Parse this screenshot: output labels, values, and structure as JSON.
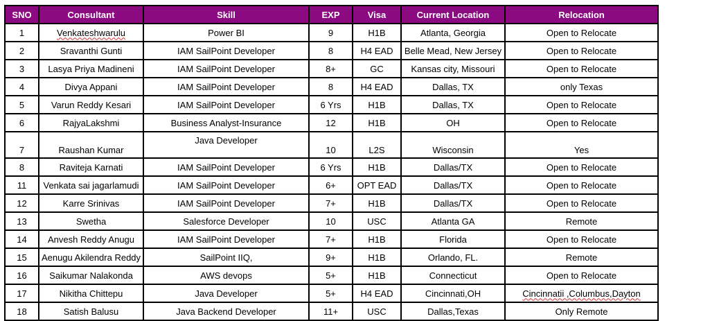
{
  "table": {
    "header_color": "#8b0a82",
    "columns": [
      "SNO",
      "Consultant",
      "Skill",
      "EXP",
      "Visa",
      "Current Location",
      "Relocation"
    ],
    "rows": [
      {
        "sno": "1",
        "consultant": "Venkateshwarulu",
        "skill": "Power BI",
        "exp": "9",
        "visa": "H1B",
        "location": "Atlanta, Georgia",
        "relocation": "Open to Relocate"
      },
      {
        "sno": "2",
        "consultant": "Sravanthi Gunti",
        "skill": "IAM SailPoint Developer",
        "exp": "8",
        "visa": "H4 EAD",
        "location": "Belle Mead, New Jersey",
        "relocation": "Open to Relocate"
      },
      {
        "sno": "3",
        "consultant": "Lasya Priya Madineni",
        "skill": "IAM SailPoint Developer",
        "exp": "8+",
        "visa": "GC",
        "location": "Kansas city, Missouri",
        "relocation": "Open to Relocate"
      },
      {
        "sno": "4",
        "consultant": "Divya Appani",
        "skill": "IAM SailPoint Developer",
        "exp": "8",
        "visa": "H4 EAD",
        "location": "Dallas, TX",
        "relocation": "only Texas"
      },
      {
        "sno": "5",
        "consultant": "Varun Reddy Kesari",
        "skill": "IAM SailPoint Developer",
        "exp": "6 Yrs",
        "visa": "H1B",
        "location": "Dallas, TX",
        "relocation": "Open to Relocate"
      },
      {
        "sno": "6",
        "consultant": "RajyaLakshmi",
        "skill": "Business Analyst-Insurance",
        "exp": "12",
        "visa": "H1B",
        "location": "OH",
        "relocation": "Open to Relocate"
      },
      {
        "sno": "7",
        "consultant": "Raushan Kumar",
        "skill": "Java Developer",
        "exp": "10",
        "visa": "L2S",
        "location": "Wisconsin",
        "relocation": "Yes"
      },
      {
        "sno": "8",
        "consultant": "Raviteja Karnati",
        "skill": "IAM SailPoint Developer",
        "exp": "6 Yrs",
        "visa": "H1B",
        "location": "Dallas/TX",
        "relocation": "Open to Relocate"
      },
      {
        "sno": "11",
        "consultant": "Venkata sai jagarlamudi",
        "skill": "IAM SailPoint Developer",
        "exp": "6+",
        "visa": "OPT EAD",
        "location": "Dallas/TX",
        "relocation": "Open to Relocate"
      },
      {
        "sno": "12",
        "consultant": "Karre Srinivas",
        "skill": "IAM SailPoint Developer",
        "exp": "7+",
        "visa": "H1B",
        "location": "Dallas/TX",
        "relocation": "Open to Relocate"
      },
      {
        "sno": "13",
        "consultant": "Swetha",
        "skill": "Salesforce Developer",
        "exp": "10",
        "visa": "USC",
        "location": "Atlanta GA",
        "relocation": "Remote"
      },
      {
        "sno": "14",
        "consultant": "Anvesh Reddy Anugu",
        "skill": "IAM SailPoint Developer",
        "exp": "7+",
        "visa": "H1B",
        "location": "Florida",
        "relocation": "Open to Relocate"
      },
      {
        "sno": "15",
        "consultant": "Aenugu Akilendra Reddy",
        "skill": "SailPoint IIQ,",
        "exp": "9+",
        "visa": "H1B",
        "location": "Orlando, FL.",
        "relocation": "Remote"
      },
      {
        "sno": "16",
        "consultant": "Saikumar Nalakonda",
        "skill": "AWS devops",
        "exp": "5+",
        "visa": "H1B",
        "location": "Connecticut",
        "relocation": "Open to Relocate"
      },
      {
        "sno": "17",
        "consultant": "Nikitha Chittepu",
        "skill": "Java Developer",
        "exp": "5+",
        "visa": "H4 EAD",
        "location": "Cincinnati,OH",
        "relocation": "Cincinnatii ,Columbus,Dayton"
      },
      {
        "sno": "18",
        "consultant": "Satish Balusu",
        "skill": "Java Backend Developer",
        "exp": "11+",
        "visa": "USC",
        "location": "Dallas,Texas",
        "relocation": "Only Remote"
      }
    ]
  }
}
